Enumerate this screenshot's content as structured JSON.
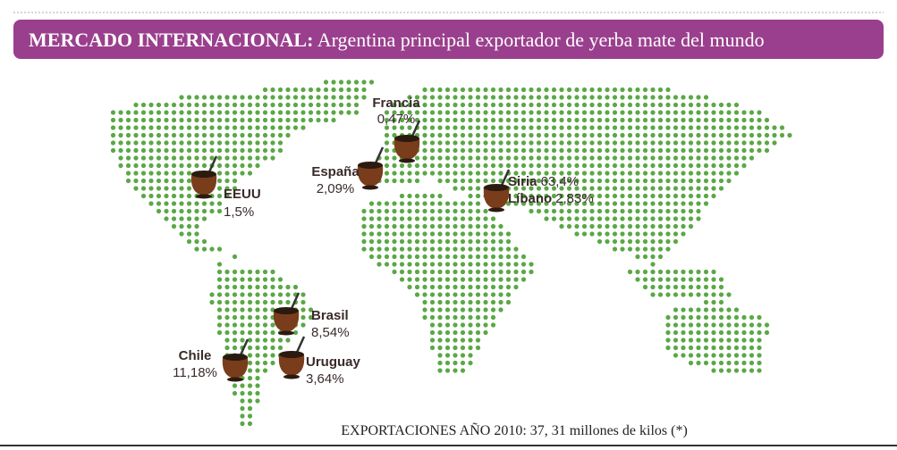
{
  "header": {
    "title": "MERCADO INTERNACIONAL:",
    "subtitle": "Argentina principal exportador de yerba mate del mundo"
  },
  "markers": [
    {
      "name": "Francia",
      "value": "0,47%"
    },
    {
      "name": "España",
      "value": "2,09%"
    },
    {
      "name": "EEUU",
      "value": "1,5%"
    },
    {
      "name": "Siria",
      "value": "63,4%"
    },
    {
      "name": "Líbano",
      "value": "2,83%"
    },
    {
      "name": "Brasil",
      "value": "8,54%"
    },
    {
      "name": "Chile",
      "value": "11,18%"
    },
    {
      "name": "Uruguay",
      "value": "3,64%"
    }
  ],
  "footer": "EXPORTACIONES AÑO 2010: 37, 31 millones de kilos (*)"
}
